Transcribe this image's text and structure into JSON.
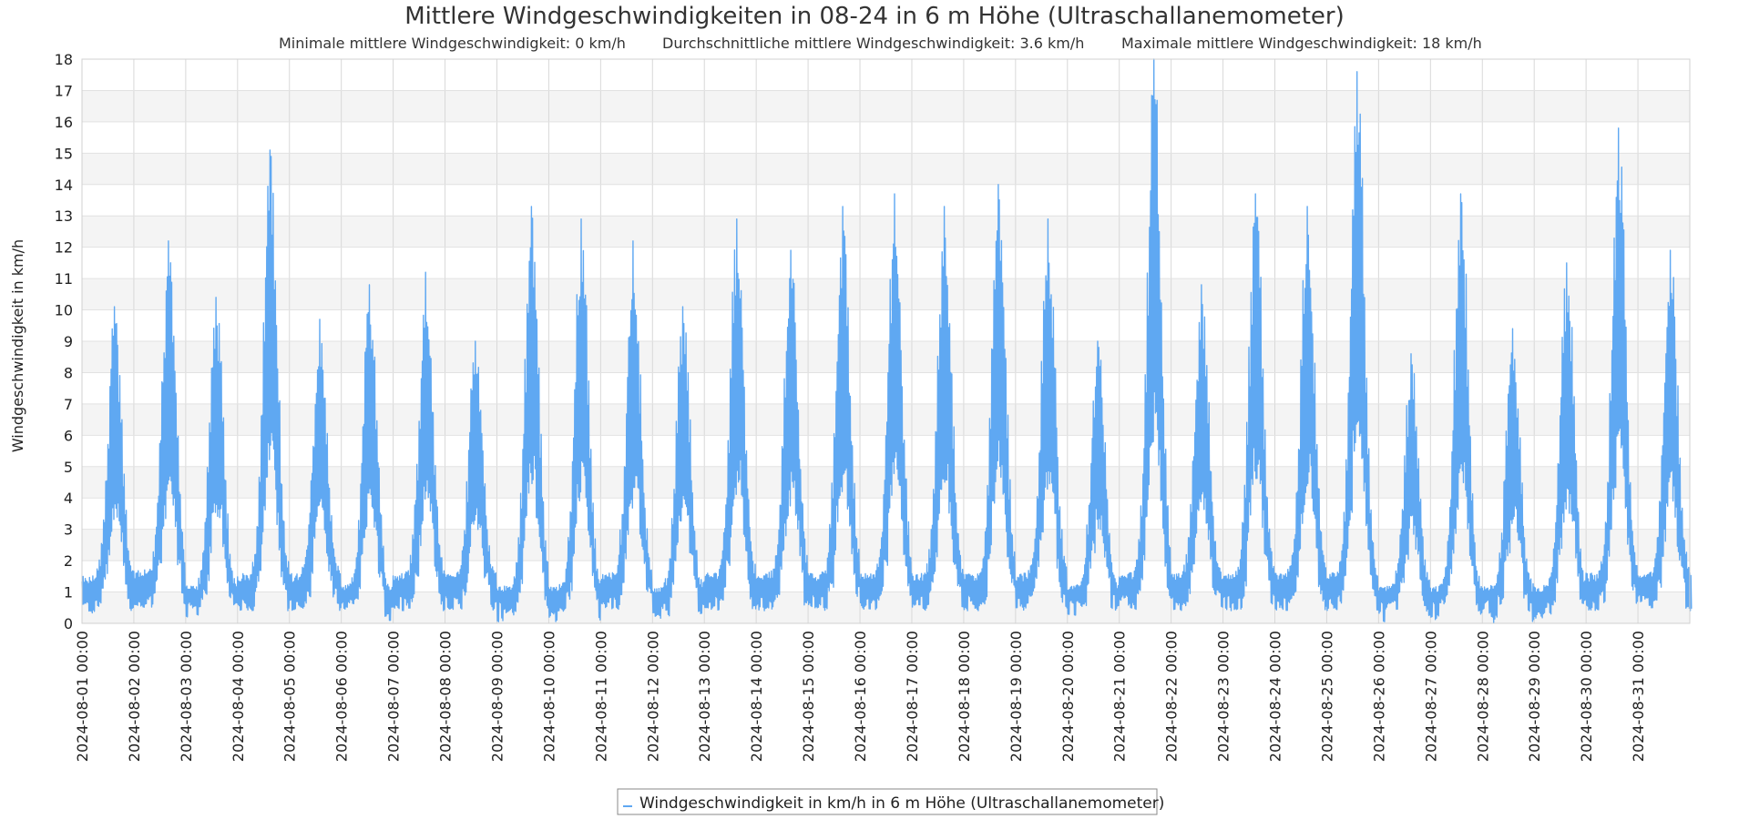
{
  "chart_data": {
    "type": "line",
    "title": "Mittlere Windgeschwindigkeiten in 08-24 in 6 m Höhe (Ultraschallanemometer)",
    "subtitle": {
      "min": "Minimale mittlere Windgeschwindigkeit: 0 km/h",
      "avg": "Durchschnittliche mittlere Windgeschwindigkeit: 3.6 km/h",
      "max": "Maximale mittlere Windgeschwindigkeit: 18 km/h"
    },
    "ylabel": "Windgeschwindigkeit in km/h",
    "xlabel": "",
    "ylim": [
      0,
      18
    ],
    "xlim": [
      "2024-08-01 00:00",
      "2024-09-01 00:00"
    ],
    "y_ticks": [
      "0",
      "1",
      "2",
      "3",
      "4",
      "5",
      "6",
      "7",
      "8",
      "9",
      "10",
      "11",
      "12",
      "13",
      "14",
      "15",
      "16",
      "17",
      "18"
    ],
    "x_ticks": [
      "2024-08-01 00:00",
      "2024-08-02 00:00",
      "2024-08-03 00:00",
      "2024-08-04 00:00",
      "2024-08-05 00:00",
      "2024-08-06 00:00",
      "2024-08-07 00:00",
      "2024-08-08 00:00",
      "2024-08-09 00:00",
      "2024-08-10 00:00",
      "2024-08-11 00:00",
      "2024-08-12 00:00",
      "2024-08-13 00:00",
      "2024-08-14 00:00",
      "2024-08-15 00:00",
      "2024-08-16 00:00",
      "2024-08-17 00:00",
      "2024-08-18 00:00",
      "2024-08-19 00:00",
      "2024-08-20 00:00",
      "2024-08-21 00:00",
      "2024-08-22 00:00",
      "2024-08-23 00:00",
      "2024-08-24 00:00",
      "2024-08-25 00:00",
      "2024-08-26 00:00",
      "2024-08-27 00:00",
      "2024-08-28 00:00",
      "2024-08-29 00:00",
      "2024-08-30 00:00",
      "2024-08-31 00:00"
    ],
    "grid": true,
    "legend_position": "bottom-center",
    "series": [
      {
        "name": "Windgeschwindigkeit in km/h in 6 m Höhe (Ultraschallanemometer)",
        "color": "#5fa8f2",
        "sampling": "hourly",
        "start": "2024-08-01 00:00",
        "daily_peaks": [
          {
            "date": "2024-08-01",
            "hour": 15,
            "value": 10.1,
            "min": 0.3
          },
          {
            "date": "2024-08-02",
            "hour": 16,
            "value": 12.2,
            "min": 0.5
          },
          {
            "date": "2024-08-03",
            "hour": 14,
            "value": 10.4,
            "min": 0.0
          },
          {
            "date": "2024-08-04",
            "hour": 15,
            "value": 15.1,
            "min": 0.4
          },
          {
            "date": "2024-08-05",
            "hour": 14,
            "value": 9.7,
            "min": 0.4
          },
          {
            "date": "2024-08-06",
            "hour": 13,
            "value": 10.8,
            "min": 0.0
          },
          {
            "date": "2024-08-07",
            "hour": 15,
            "value": 11.2,
            "min": 0.4
          },
          {
            "date": "2024-08-08",
            "hour": 14,
            "value": 9.0,
            "min": 0.4
          },
          {
            "date": "2024-08-09",
            "hour": 16,
            "value": 13.3,
            "min": 0.0
          },
          {
            "date": "2024-08-10",
            "hour": 15,
            "value": 12.9,
            "min": 0.0
          },
          {
            "date": "2024-08-11",
            "hour": 15,
            "value": 12.2,
            "min": 0.4
          },
          {
            "date": "2024-08-12",
            "hour": 14,
            "value": 10.1,
            "min": 0.0
          },
          {
            "date": "2024-08-13",
            "hour": 15,
            "value": 12.9,
            "min": 0.4
          },
          {
            "date": "2024-08-14",
            "hour": 16,
            "value": 11.9,
            "min": 0.4
          },
          {
            "date": "2024-08-15",
            "hour": 16,
            "value": 13.3,
            "min": 0.4
          },
          {
            "date": "2024-08-16",
            "hour": 16,
            "value": 13.7,
            "min": 0.4
          },
          {
            "date": "2024-08-17",
            "hour": 15,
            "value": 13.3,
            "min": 0.4
          },
          {
            "date": "2024-08-18",
            "hour": 16,
            "value": 14.0,
            "min": 0.4
          },
          {
            "date": "2024-08-19",
            "hour": 15,
            "value": 12.9,
            "min": 0.4
          },
          {
            "date": "2024-08-20",
            "hour": 14,
            "value": 9.0,
            "min": 0.0
          },
          {
            "date": "2024-08-21",
            "hour": 16,
            "value": 18.0,
            "min": 0.4
          },
          {
            "date": "2024-08-22",
            "hour": 14,
            "value": 10.8,
            "min": 0.4
          },
          {
            "date": "2024-08-23",
            "hour": 15,
            "value": 13.7,
            "min": 0.4
          },
          {
            "date": "2024-08-24",
            "hour": 15,
            "value": 13.3,
            "min": 0.4
          },
          {
            "date": "2024-08-25",
            "hour": 14,
            "value": 17.6,
            "min": 0.4
          },
          {
            "date": "2024-08-26",
            "hour": 15,
            "value": 8.6,
            "min": 0.0
          },
          {
            "date": "2024-08-27",
            "hour": 14,
            "value": 13.7,
            "min": 0.0
          },
          {
            "date": "2024-08-28",
            "hour": 14,
            "value": 9.4,
            "min": 0.0
          },
          {
            "date": "2024-08-29",
            "hour": 15,
            "value": 11.5,
            "min": 0.0
          },
          {
            "date": "2024-08-30",
            "hour": 15,
            "value": 15.8,
            "min": 0.4
          },
          {
            "date": "2024-08-31",
            "hour": 15,
            "value": 11.9,
            "min": 0.4
          }
        ]
      }
    ]
  }
}
